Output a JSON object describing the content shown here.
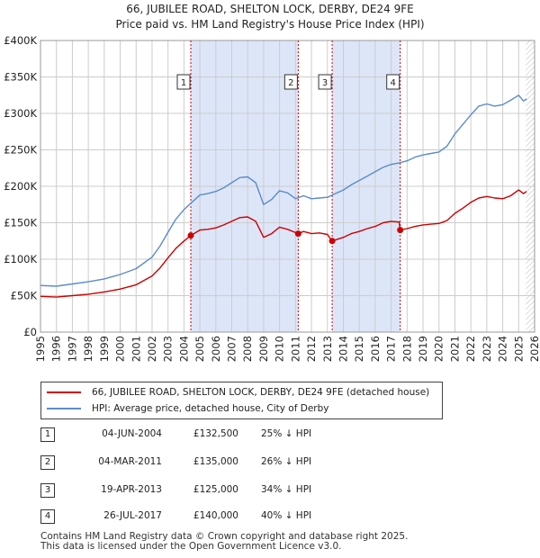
{
  "chart_data": {
    "type": "line",
    "title": "66, JUBILEE ROAD, SHELTON LOCK, DERBY, DE24 9FE",
    "subtitle": "Price paid vs. HM Land Registry's House Price Index (HPI)",
    "xlabel": "",
    "ylabel": "",
    "xlim": [
      1995,
      2026
    ],
    "ylim": [
      0,
      400000
    ],
    "yticks": [
      {
        "v": 0,
        "label": "£0"
      },
      {
        "v": 50000,
        "label": "£50K"
      },
      {
        "v": 100000,
        "label": "£100K"
      },
      {
        "v": 150000,
        "label": "£150K"
      },
      {
        "v": 200000,
        "label": "£200K"
      },
      {
        "v": 250000,
        "label": "£250K"
      },
      {
        "v": 300000,
        "label": "£300K"
      },
      {
        "v": 350000,
        "label": "£350K"
      },
      {
        "v": 400000,
        "label": "£400K"
      }
    ],
    "xticks": [
      "1995",
      "1996",
      "1997",
      "1998",
      "1999",
      "2000",
      "2001",
      "2002",
      "2003",
      "2004",
      "2005",
      "2006",
      "2007",
      "2008",
      "2009",
      "2010",
      "2011",
      "2012",
      "2013",
      "2014",
      "2015",
      "2016",
      "2017",
      "2018",
      "2019",
      "2020",
      "2021",
      "2022",
      "2023",
      "2024",
      "2025",
      "2026"
    ],
    "series": [
      {
        "name": "66, JUBILEE ROAD, SHELTON LOCK, DERBY, DE24 9FE (detached house)",
        "color": "#cc0000",
        "points": [
          [
            1995.0,
            49000
          ],
          [
            1996.0,
            48000
          ],
          [
            1997.0,
            50000
          ],
          [
            1998.0,
            52000
          ],
          [
            1999.0,
            55000
          ],
          [
            2000.0,
            59000
          ],
          [
            2001.0,
            65000
          ],
          [
            2002.0,
            77000
          ],
          [
            2002.5,
            88000
          ],
          [
            2003.0,
            102000
          ],
          [
            2003.5,
            115000
          ],
          [
            2004.0,
            125000
          ],
          [
            2004.43,
            132500
          ],
          [
            2005.0,
            140000
          ],
          [
            2005.5,
            141000
          ],
          [
            2006.0,
            143000
          ],
          [
            2006.5,
            147000
          ],
          [
            2007.0,
            152000
          ],
          [
            2007.5,
            157000
          ],
          [
            2008.0,
            158000
          ],
          [
            2008.5,
            152000
          ],
          [
            2009.0,
            130000
          ],
          [
            2009.5,
            135000
          ],
          [
            2010.0,
            144000
          ],
          [
            2010.5,
            141000
          ],
          [
            2011.17,
            135000
          ],
          [
            2011.5,
            138000
          ],
          [
            2012.0,
            135000
          ],
          [
            2012.5,
            136000
          ],
          [
            2013.0,
            134000
          ],
          [
            2013.3,
            125000
          ],
          [
            2013.6,
            127000
          ],
          [
            2014.0,
            130000
          ],
          [
            2014.5,
            135000
          ],
          [
            2015.0,
            138000
          ],
          [
            2015.5,
            142000
          ],
          [
            2016.0,
            145000
          ],
          [
            2016.5,
            150000
          ],
          [
            2017.0,
            152000
          ],
          [
            2017.5,
            151000
          ],
          [
            2017.57,
            140000
          ],
          [
            2018.0,
            142000
          ],
          [
            2018.5,
            145000
          ],
          [
            2019.0,
            147000
          ],
          [
            2019.5,
            148000
          ],
          [
            2020.0,
            149000
          ],
          [
            2020.5,
            153000
          ],
          [
            2021.0,
            163000
          ],
          [
            2021.5,
            170000
          ],
          [
            2022.0,
            178000
          ],
          [
            2022.5,
            184000
          ],
          [
            2023.0,
            186000
          ],
          [
            2023.5,
            184000
          ],
          [
            2024.0,
            183000
          ],
          [
            2024.5,
            187000
          ],
          [
            2025.0,
            195000
          ],
          [
            2025.3,
            190000
          ],
          [
            2025.5,
            193000
          ]
        ]
      },
      {
        "name": "HPI: Average price, detached house, City of Derby",
        "color": "#5b8cc8",
        "points": [
          [
            1995.0,
            64000
          ],
          [
            1996.0,
            63000
          ],
          [
            1997.0,
            66000
          ],
          [
            1998.0,
            69000
          ],
          [
            1999.0,
            73000
          ],
          [
            2000.0,
            79000
          ],
          [
            2001.0,
            87000
          ],
          [
            2002.0,
            103000
          ],
          [
            2002.5,
            118000
          ],
          [
            2003.0,
            137000
          ],
          [
            2003.5,
            155000
          ],
          [
            2004.0,
            168000
          ],
          [
            2004.5,
            178000
          ],
          [
            2005.0,
            188000
          ],
          [
            2005.5,
            190000
          ],
          [
            2006.0,
            193000
          ],
          [
            2006.5,
            198000
          ],
          [
            2007.0,
            205000
          ],
          [
            2007.5,
            212000
          ],
          [
            2008.0,
            213000
          ],
          [
            2008.5,
            205000
          ],
          [
            2009.0,
            175000
          ],
          [
            2009.5,
            182000
          ],
          [
            2010.0,
            194000
          ],
          [
            2010.5,
            191000
          ],
          [
            2011.0,
            183000
          ],
          [
            2011.5,
            187000
          ],
          [
            2012.0,
            183000
          ],
          [
            2012.5,
            184000
          ],
          [
            2013.0,
            185000
          ],
          [
            2013.5,
            190000
          ],
          [
            2014.0,
            195000
          ],
          [
            2014.5,
            202000
          ],
          [
            2015.0,
            208000
          ],
          [
            2015.5,
            214000
          ],
          [
            2016.0,
            220000
          ],
          [
            2016.5,
            226000
          ],
          [
            2017.0,
            230000
          ],
          [
            2017.5,
            232000
          ],
          [
            2018.0,
            235000
          ],
          [
            2018.5,
            240000
          ],
          [
            2019.0,
            243000
          ],
          [
            2019.5,
            245000
          ],
          [
            2020.0,
            247000
          ],
          [
            2020.5,
            255000
          ],
          [
            2021.0,
            272000
          ],
          [
            2021.5,
            285000
          ],
          [
            2022.0,
            298000
          ],
          [
            2022.5,
            310000
          ],
          [
            2023.0,
            313000
          ],
          [
            2023.5,
            310000
          ],
          [
            2024.0,
            312000
          ],
          [
            2024.5,
            318000
          ],
          [
            2025.0,
            325000
          ],
          [
            2025.3,
            317000
          ],
          [
            2025.5,
            320000
          ]
        ]
      }
    ],
    "sales": [
      {
        "n": "1",
        "x": 2004.43,
        "price": 132500
      },
      {
        "n": "2",
        "x": 2011.17,
        "price": 135000
      },
      {
        "n": "3",
        "x": 2013.3,
        "price": 125000
      },
      {
        "n": "4",
        "x": 2017.57,
        "price": 140000
      }
    ],
    "shaded_ranges": [
      [
        2004.43,
        2011.17
      ],
      [
        2013.3,
        2017.57
      ]
    ],
    "forecast_start": 2025.45,
    "colors": {
      "red": "#cc0000",
      "blue": "#5b8cc8",
      "shade": "#dde6f8",
      "grid": "#cccccc"
    }
  },
  "transactions": [
    {
      "num": "1",
      "date": "04-JUN-2004",
      "price": "£132,500",
      "hpi": "25% ↓ HPI"
    },
    {
      "num": "2",
      "date": "04-MAR-2011",
      "price": "£135,000",
      "hpi": "26% ↓ HPI"
    },
    {
      "num": "3",
      "date": "19-APR-2013",
      "price": "£125,000",
      "hpi": "34% ↓ HPI"
    },
    {
      "num": "4",
      "date": "26-JUL-2017",
      "price": "£140,000",
      "hpi": "40% ↓ HPI"
    }
  ],
  "footer": {
    "line1": "Contains HM Land Registry data © Crown copyright and database right 2025.",
    "line2": "This data is licensed under the Open Government Licence v3.0."
  }
}
